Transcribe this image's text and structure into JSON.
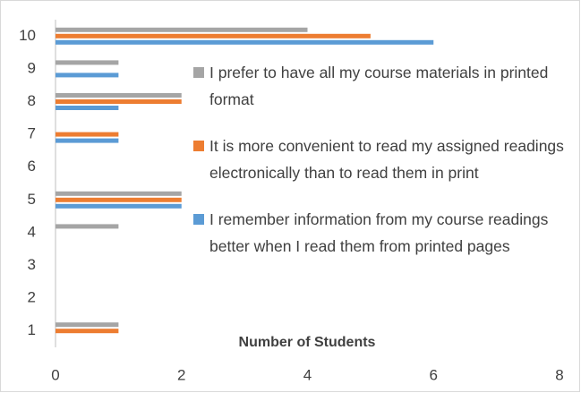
{
  "chart_data": {
    "type": "barh",
    "xlabel": "Number of Students",
    "categories": [
      "1",
      "2",
      "3",
      "4",
      "5",
      "6",
      "7",
      "8",
      "9",
      "10"
    ],
    "series": [
      {
        "name": "I prefer to have all my course materials in printed format",
        "color": "#a5a5a5",
        "values": [
          1,
          0,
          0,
          1,
          2,
          0,
          0,
          2,
          1,
          4
        ]
      },
      {
        "name": "It is more convenient to read my assigned readings electronically than to read them in print",
        "color": "#ed7d31",
        "values": [
          1,
          0,
          0,
          0,
          2,
          0,
          1,
          2,
          0,
          5
        ]
      },
      {
        "name": "I remember information from my course readings better when I read them from printed pages",
        "color": "#5b9bd5",
        "values": [
          0,
          0,
          0,
          0,
          2,
          0,
          1,
          1,
          1,
          6
        ]
      }
    ],
    "xlim": [
      0,
      8
    ],
    "xticks": [
      0,
      2,
      4,
      6,
      8
    ],
    "grid": false
  }
}
